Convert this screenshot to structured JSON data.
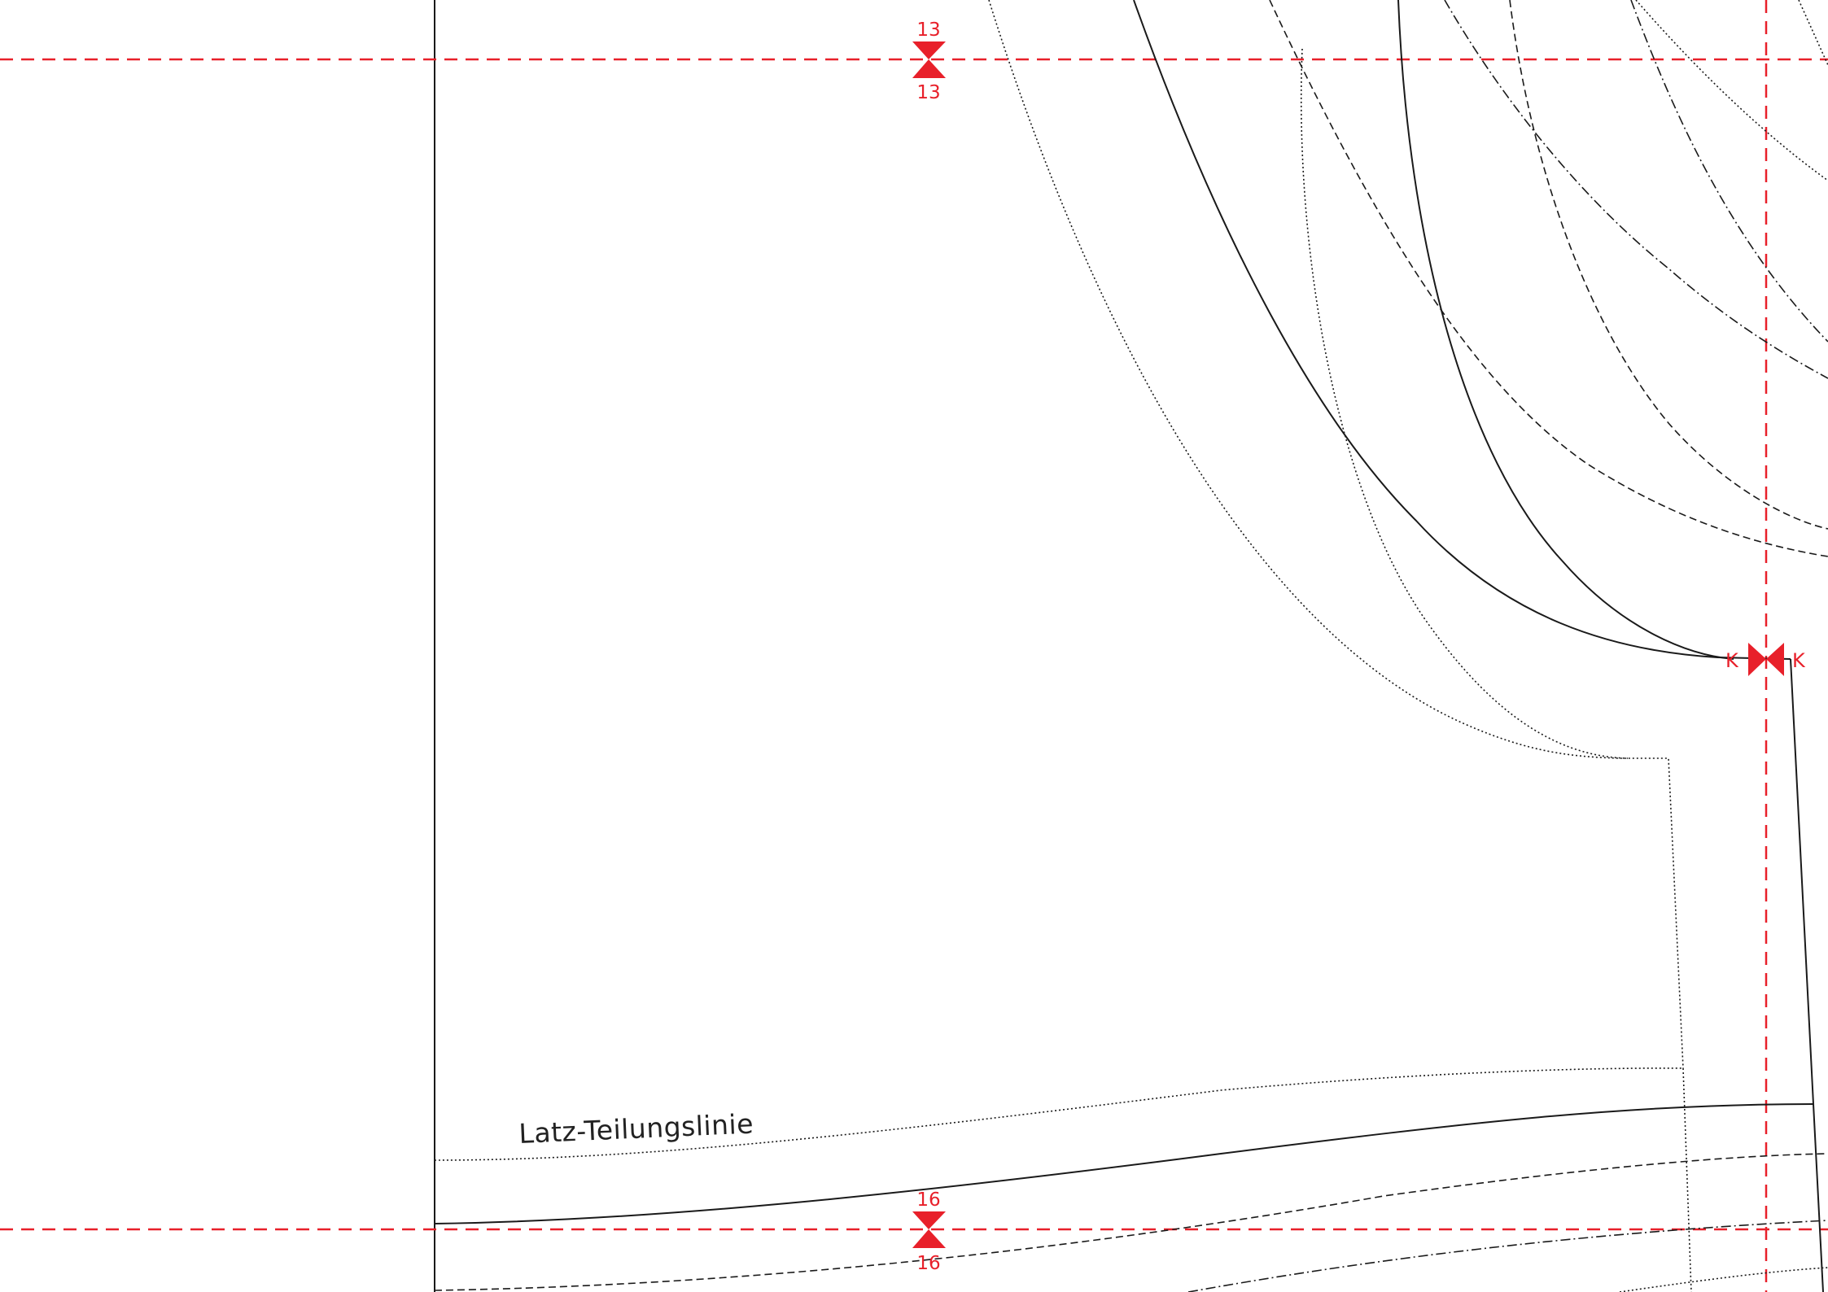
{
  "colors": {
    "paper": "#ffffff",
    "ink": "#1a1a1a",
    "accent": "#e8202a"
  },
  "labels": {
    "line_label": "Latz-Teilungslinie",
    "mark_top": "13",
    "mark_bottom": "16",
    "mark_side": "K"
  }
}
